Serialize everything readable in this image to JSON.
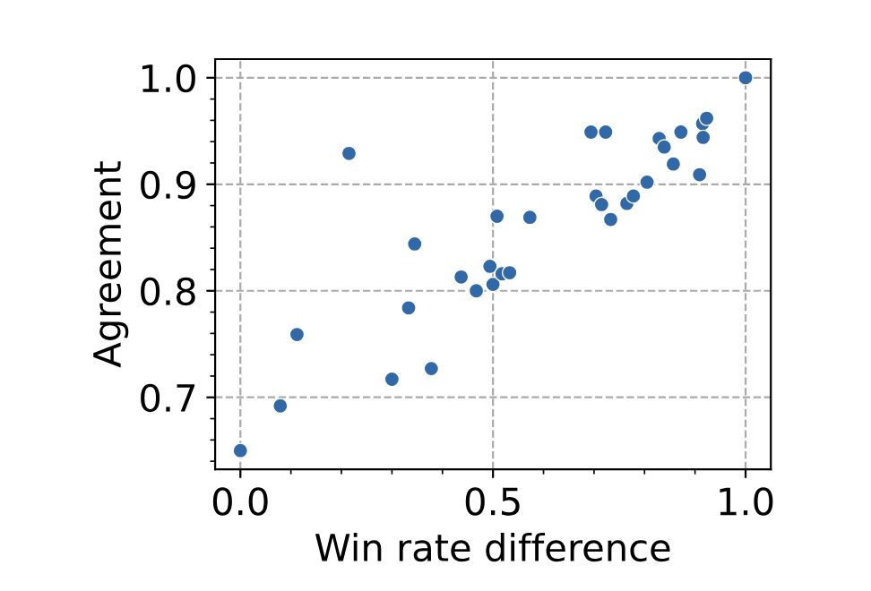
{
  "chart_data": {
    "type": "scatter",
    "xlabel": "Win rate difference",
    "ylabel": "Agreement",
    "x": [
      0,
      0.079,
      0.112,
      0.215,
      0.3,
      0.333,
      0.345,
      0.378,
      0.437,
      0.467,
      0.494,
      0.5,
      0.508,
      0.518,
      0.533,
      0.573,
      0.694,
      0.723,
      0.704,
      0.715,
      0.733,
      0.765,
      0.778,
      0.805,
      0.829,
      0.839,
      0.857,
      0.872,
      0.909,
      0.915,
      0.916,
      0.923,
      1.0
    ],
    "values": [
      0.65,
      0.692,
      0.759,
      0.929,
      0.717,
      0.784,
      0.844,
      0.727,
      0.813,
      0.8,
      0.823,
      0.806,
      0.87,
      0.816,
      0.817,
      0.869,
      0.949,
      0.949,
      0.889,
      0.881,
      0.867,
      0.882,
      0.889,
      0.902,
      0.943,
      0.935,
      0.919,
      0.949,
      0.909,
      0.957,
      0.944,
      0.962,
      1.0
    ],
    "color": "#3068a8",
    "marker": "circle",
    "xlim": [
      -0.05,
      1.05
    ],
    "ylim": [
      0.6325,
      1.0175
    ],
    "xticks": [
      {
        "value": 0,
        "label": "0.0"
      },
      0.5,
      {
        "value": 1,
        "label": "1.0"
      }
    ],
    "yticks": [
      0.7,
      0.8,
      0.9,
      {
        "value": 1,
        "label": "1.0"
      }
    ],
    "grid": true
  }
}
